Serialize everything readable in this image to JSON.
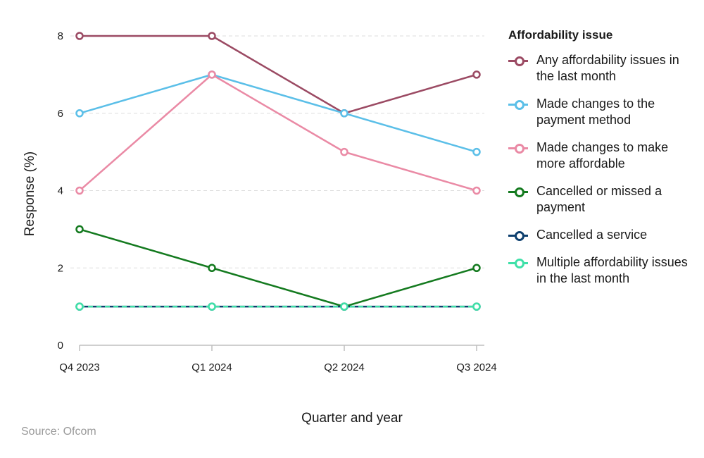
{
  "chart_data": {
    "type": "line",
    "title": "",
    "xlabel": "Quarter and year",
    "ylabel": "Response (%)",
    "categories": [
      "Q4 2023",
      "Q1 2024",
      "Q2 2024",
      "Q3 2024"
    ],
    "ylim": [
      0,
      8
    ],
    "yticks": [
      "0",
      "2",
      "4",
      "6",
      "8"
    ],
    "grid": "horizontal dashed",
    "legend_title": "Affordability issue",
    "legend_position": "right",
    "series": [
      {
        "name": "Any affordability issues in the last month",
        "values": [
          8,
          8,
          6,
          7
        ],
        "color": "#9b4a63",
        "dashed": false
      },
      {
        "name": "Made changes to the payment method",
        "values": [
          6,
          7,
          6,
          5
        ],
        "color": "#5bbfe8",
        "dashed": false
      },
      {
        "name": "Made changes to make more affordable",
        "values": [
          4,
          7,
          5,
          4
        ],
        "color": "#ea8aa5",
        "dashed": false
      },
      {
        "name": "Cancelled or missed a payment",
        "values": [
          3,
          2,
          1,
          2
        ],
        "color": "#147a1f",
        "dashed": false
      },
      {
        "name": "Cancelled a service",
        "values": [
          1,
          1,
          1,
          1
        ],
        "color": "#0d3f6e",
        "dashed": false
      },
      {
        "name": "Multiple affordability issues in the last month",
        "values": [
          1,
          1,
          1,
          1
        ],
        "color": "#3fe0a8",
        "dashed": true
      }
    ]
  },
  "source": "Source: Ofcom"
}
